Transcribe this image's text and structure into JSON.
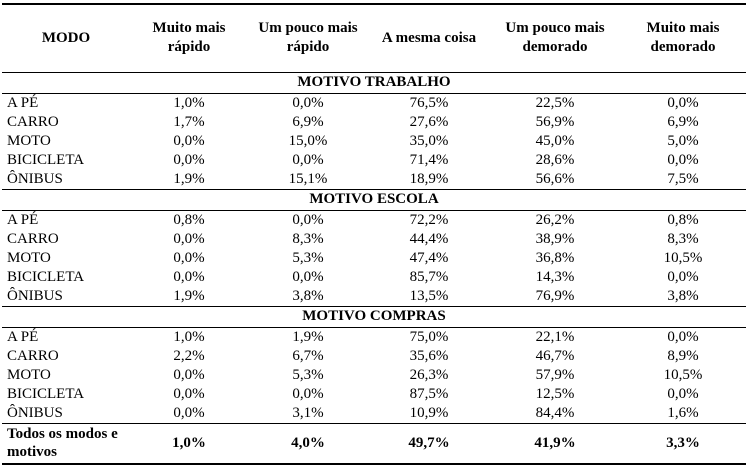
{
  "header": {
    "modo": "MODO",
    "columns": [
      "Muito mais rápido",
      "Um pouco mais rápido",
      "A mesma coisa",
      "Um pouco mais demorado",
      "Muito mais demorado"
    ]
  },
  "sections": [
    {
      "title": "MOTIVO TRABALHO",
      "rows": [
        {
          "mode": "A PÉ",
          "values": [
            "1,0%",
            "0,0%",
            "76,5%",
            "22,5%",
            "0,0%"
          ]
        },
        {
          "mode": "CARRO",
          "values": [
            "1,7%",
            "6,9%",
            "27,6%",
            "56,9%",
            "6,9%"
          ]
        },
        {
          "mode": "MOTO",
          "values": [
            "0,0%",
            "15,0%",
            "35,0%",
            "45,0%",
            "5,0%"
          ]
        },
        {
          "mode": "BICICLETA",
          "values": [
            "0,0%",
            "0,0%",
            "71,4%",
            "28,6%",
            "0,0%"
          ]
        },
        {
          "mode": "ÔNIBUS",
          "values": [
            "1,9%",
            "15,1%",
            "18,9%",
            "56,6%",
            "7,5%"
          ]
        }
      ]
    },
    {
      "title": "MOTIVO ESCOLA",
      "rows": [
        {
          "mode": "A PÉ",
          "values": [
            "0,8%",
            "0,0%",
            "72,2%",
            "26,2%",
            "0,8%"
          ]
        },
        {
          "mode": "CARRO",
          "values": [
            "0,0%",
            "8,3%",
            "44,4%",
            "38,9%",
            "8,3%"
          ]
        },
        {
          "mode": "MOTO",
          "values": [
            "0,0%",
            "5,3%",
            "47,4%",
            "36,8%",
            "10,5%"
          ]
        },
        {
          "mode": "BICICLETA",
          "values": [
            "0,0%",
            "0,0%",
            "85,7%",
            "14,3%",
            "0,0%"
          ]
        },
        {
          "mode": "ÔNIBUS",
          "values": [
            "1,9%",
            "3,8%",
            "13,5%",
            "76,9%",
            "3,8%"
          ]
        }
      ]
    },
    {
      "title": "MOTIVO COMPRAS",
      "rows": [
        {
          "mode": "A PÉ",
          "values": [
            "1,0%",
            "1,9%",
            "75,0%",
            "22,1%",
            "0,0%"
          ]
        },
        {
          "mode": "CARRO",
          "values": [
            "2,2%",
            "6,7%",
            "35,6%",
            "46,7%",
            "8,9%"
          ]
        },
        {
          "mode": "MOTO",
          "values": [
            "0,0%",
            "5,3%",
            "26,3%",
            "57,9%",
            "10,5%"
          ]
        },
        {
          "mode": "BICICLETA",
          "values": [
            "0,0%",
            "0,0%",
            "87,5%",
            "12,5%",
            "0,0%"
          ]
        },
        {
          "mode": "ÔNIBUS",
          "values": [
            "0,0%",
            "3,1%",
            "10,9%",
            "84,4%",
            "1,6%"
          ]
        }
      ]
    }
  ],
  "total": {
    "label": "Todos os modos e motivos",
    "values": [
      "1,0%",
      "4,0%",
      "49,7%",
      "41,9%",
      "3,3%"
    ]
  }
}
